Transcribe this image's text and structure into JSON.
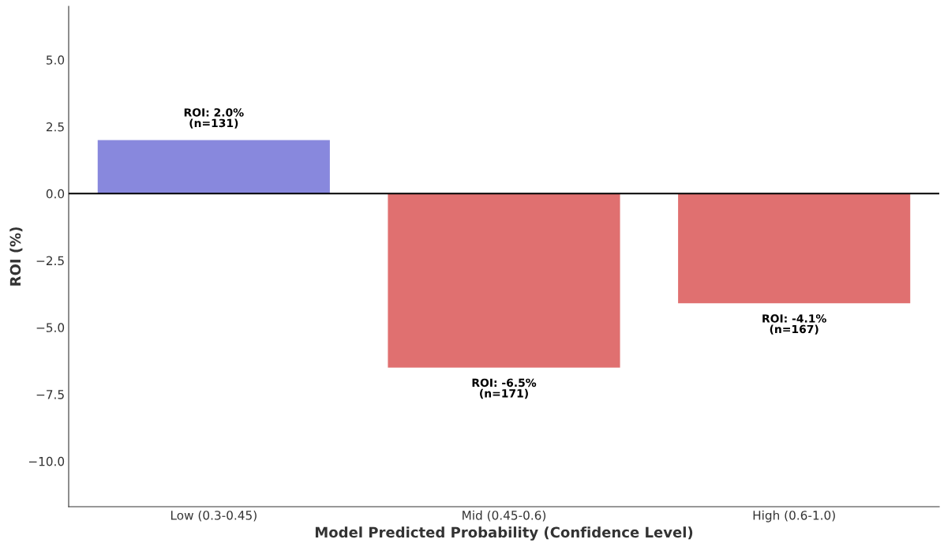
{
  "chart_data": {
    "type": "bar",
    "xlabel": "Model Predicted Probability (Confidence Level)",
    "ylabel": "ROI (%)",
    "categories": [
      "Low (0.3-0.45)",
      "Mid (0.45-0.6)",
      "High (0.6-1.0)"
    ],
    "values": [
      2.0,
      -6.5,
      -4.1
    ],
    "colors": [
      "#8888dd",
      "#e07070",
      "#e07070"
    ],
    "value_labels": [
      "ROI: 2.0%\n(n=131)",
      "ROI: -6.5%\n(n=171)",
      "ROI: -4.1%\n(n=167)"
    ],
    "ylim": [
      -11.7,
      7.0
    ],
    "yticks": [
      {
        "value": -10.0,
        "label": "−10.0"
      },
      {
        "value": -7.5,
        "label": "−7.5"
      },
      {
        "value": -5.0,
        "label": "−5.0"
      },
      {
        "value": -2.5,
        "label": "−2.5"
      },
      {
        "value": 0.0,
        "label": "0.0"
      },
      {
        "value": 2.5,
        "label": "2.5"
      },
      {
        "value": 5.0,
        "label": "5.0"
      }
    ],
    "ref_lines": [
      {
        "axis": "y",
        "value": 0,
        "label": null,
        "color": "#000000"
      }
    ],
    "grid": false,
    "legend": false
  }
}
